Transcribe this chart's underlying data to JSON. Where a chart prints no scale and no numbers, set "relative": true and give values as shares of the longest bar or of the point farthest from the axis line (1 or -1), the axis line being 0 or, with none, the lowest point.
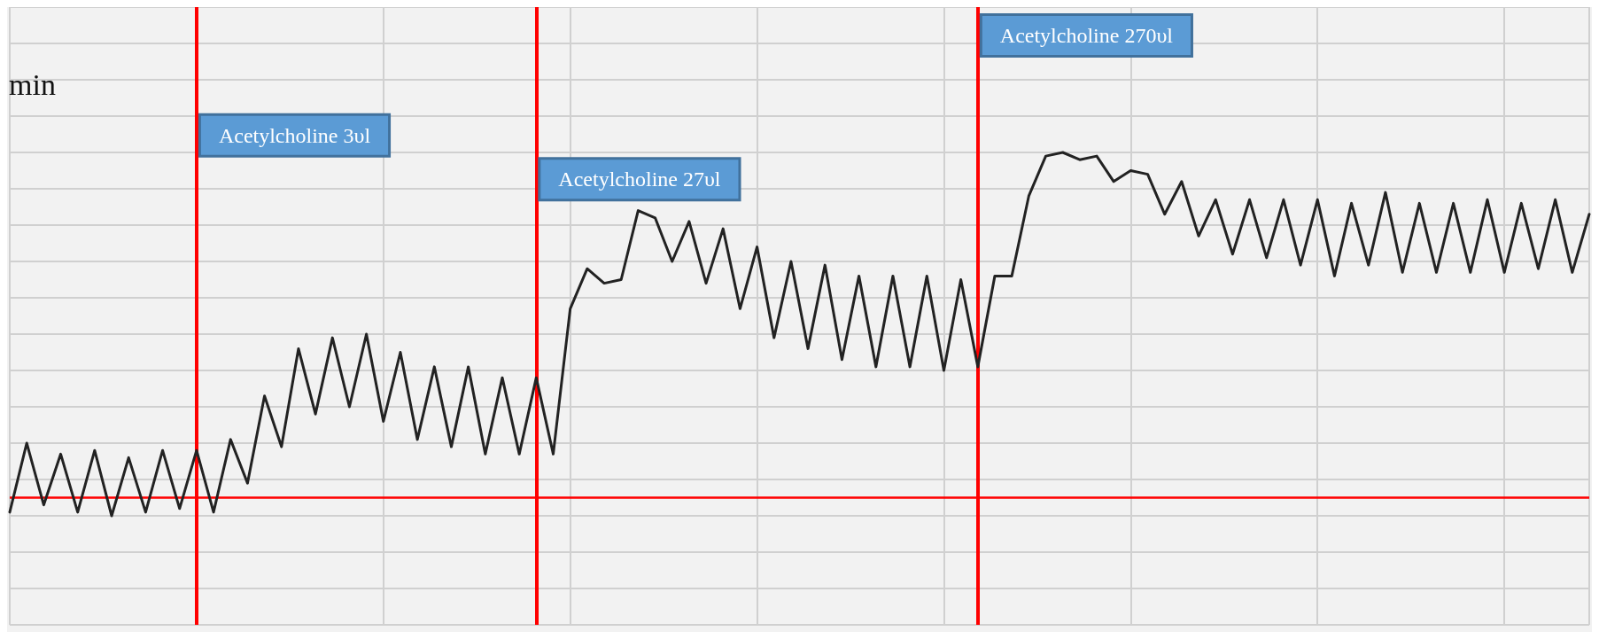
{
  "chart_data": {
    "type": "line",
    "relative": true,
    "grid": true,
    "marker": "none",
    "line_style": "solid",
    "categories": [
      null,
      null,
      null,
      null,
      null,
      null,
      null,
      null,
      null,
      null,
      null,
      null,
      null,
      null,
      null,
      null,
      null,
      null,
      null,
      null,
      null,
      null,
      null,
      null,
      null,
      null,
      null,
      null,
      null,
      null,
      null,
      null,
      null,
      null,
      null,
      null,
      null,
      null,
      null,
      null,
      null,
      null,
      null,
      null,
      null,
      null,
      null,
      null,
      null,
      null,
      null,
      null,
      null,
      null,
      null,
      null,
      null,
      null,
      null,
      null,
      null,
      null,
      null,
      null,
      null,
      null,
      null,
      null,
      null,
      null,
      null,
      null,
      null,
      null,
      null,
      null,
      null,
      null,
      null,
      null,
      null,
      null,
      null,
      null,
      null,
      null,
      null,
      null,
      null,
      null,
      null,
      null,
      null,
      null
    ],
    "annotations": [
      "min",
      "Acetylcholine 3υl",
      "Acetylcholine 27υl",
      "Acetylcholine 270υl"
    ],
    "ref_lines": [
      {
        "axis": "y",
        "value": 0.05,
        "color": "#ff0000",
        "line_style": "solid"
      }
    ],
    "series": [
      {
        "color": "#222222",
        "values": [
          0.01,
          0.2,
          0.03,
          0.17,
          0.01,
          0.18,
          0,
          0.16,
          0.01,
          0.18,
          0.02,
          0.18,
          0.01,
          0.21,
          0.09,
          0.33,
          0.19,
          0.46,
          0.28,
          0.49,
          0.3,
          0.5,
          0.26,
          0.45,
          0.21,
          0.41,
          0.19,
          0.41,
          0.17,
          0.38,
          0.17,
          0.38,
          0.17,
          0.57,
          0.68,
          0.64,
          0.65,
          0.84,
          0.82,
          0.7,
          0.81,
          0.64,
          0.79,
          0.57,
          0.74,
          0.49,
          0.7,
          0.46,
          0.69,
          0.43,
          0.66,
          0.41,
          0.66,
          0.41,
          0.66,
          0.4,
          0.65,
          0.41,
          0.66,
          0.66,
          0.88,
          0.99,
          1,
          0.98,
          0.99,
          0.92,
          0.95,
          0.94,
          0.83,
          0.92,
          0.77,
          0.87,
          0.72,
          0.87,
          0.71,
          0.87,
          0.69,
          0.87,
          0.66,
          0.86,
          0.69,
          0.89,
          0.67,
          0.86,
          0.67,
          0.86,
          0.67,
          0.87,
          0.67,
          0.86,
          0.68,
          0.87,
          0.67,
          0.83
        ]
      }
    ]
  }
}
